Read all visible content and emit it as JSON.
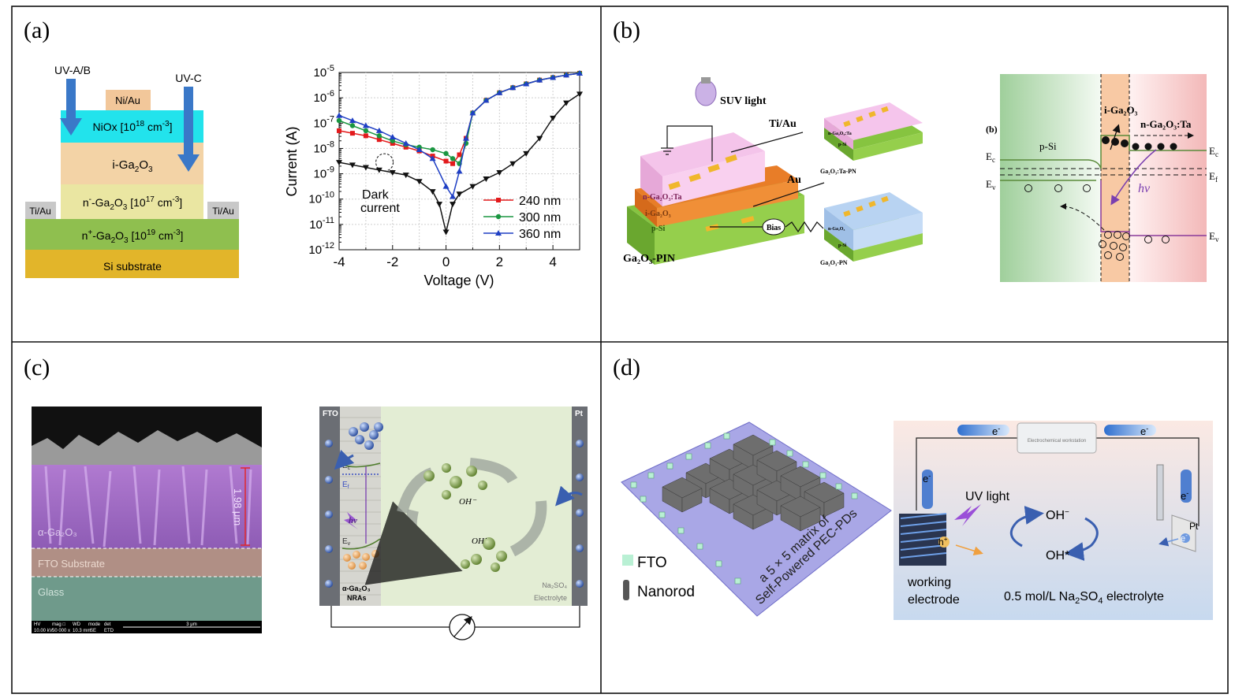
{
  "panels": {
    "a": {
      "label": "(a)",
      "device": {
        "uv_ab": "UV-A/B",
        "uv_c": "UV-C",
        "top_contact": "Ni/Au",
        "niox_layer": "NiOx [10",
        "niox_exp": "18",
        "niox_unit": " cm",
        "niox_unit_exp": "-3",
        "niox_close": "]",
        "i_layer": "i-Ga",
        "i_layer_sub1": "2",
        "i_layer_o": "O",
        "i_layer_sub2": "3",
        "n_minus_layer": "n",
        "n_minus_sup": "-",
        "n_minus_rest": "-Ga",
        "n_minus_sub1": "2",
        "n_minus_o": "O",
        "n_minus_sub2": "3",
        "n_minus_conc": " [10",
        "n_minus_exp": "17",
        "n_minus_unit": " cm",
        "n_minus_unit_exp": "-3",
        "n_minus_close": "]",
        "left_contact": "Ti/Au",
        "right_contact": "Ti/Au",
        "n_plus_layer": "n",
        "n_plus_sup": "+",
        "n_plus_rest": "-Ga",
        "n_plus_sub1": "2",
        "n_plus_o": "O",
        "n_plus_sub2": "3",
        "n_plus_conc": " [10",
        "n_plus_exp": "19",
        "n_plus_unit": " cm",
        "n_plus_unit_exp": "-3",
        "n_plus_close": "]",
        "substrate": "Si substrate"
      }
    },
    "b": {
      "label": "(b)",
      "light": "SUV light",
      "ti_au": "Ti/Au",
      "au": "Au",
      "bias": "Bias",
      "layer_n": "n-Ga₂O₃:Ta",
      "layer_i": "i-Ga₂O₃",
      "layer_p": "p-Si",
      "device_main": "Ga₂O₃-PIN",
      "device_tapn": "Ga₂O₃:Ta-PN",
      "device_pn": "Ga₂O₃-PN",
      "small_n_ta": "n-Ga₂O₃:Ta",
      "small_psi_1": "p-Si",
      "small_n": "n-Ga₂O₃",
      "small_psi_2": "p-Si",
      "band": {
        "tag": "(b)",
        "i_region": "i-Ga₂O₃",
        "n_region": "n-Ga₂O₃:Ta",
        "p_region": "p-Si",
        "ec_left": "E",
        "ec_left_sub": "c",
        "ev_left": "E",
        "ev_left_sub": "v",
        "ec_right": "E",
        "ec_right_sub": "c",
        "ef_right": "E",
        "ef_right_sub": "f",
        "ev_right": "E",
        "ev_right_sub": "v",
        "hv": "hv"
      }
    },
    "c": {
      "label": "(c)",
      "sem": {
        "layer_top": "α-Ga₂O₃",
        "layer_mid": "FTO Substrate",
        "layer_bottom": "Glass",
        "thickness": "1.98 μm",
        "info_hv": "HV",
        "info_mag": "mag □",
        "info_wd": "WD",
        "info_mode": "mode",
        "info_det": "det",
        "info_hv_val": "10.00 kV",
        "info_mag_val": "50 000 x",
        "info_wd_val": "10.3 mm",
        "info_mode_val": "SE",
        "info_det_val": "ETD",
        "scale": "3 μm"
      },
      "pec": {
        "fto": "FTO",
        "pt": "Pt",
        "ec": "E",
        "ec_sub": "c",
        "ef": "E",
        "ef_sub": "f",
        "ev": "E",
        "ev_sub": "v",
        "hv": "hv",
        "oh_minus": "OH⁻",
        "oh_radical": "OH˙",
        "nras_1": "α-Ga₂O₃",
        "nras_2": "NRAs",
        "electrolyte_1": "Na₂SO₄",
        "electrolyte_2": "Electrolyte"
      }
    },
    "d": {
      "label": "(d)",
      "matrix_1": "a 5 × 5 matrix of",
      "matrix_2": "Self-Powered PEC-PDs",
      "legend_fto": "FTO",
      "legend_nanorod": "Nanorod",
      "cell": {
        "workstation": "Electrochemical workstation",
        "e1": "e",
        "e2": "e",
        "e3": "e",
        "e4": "e",
        "e5": "e",
        "minus": "-",
        "uv": "UV light",
        "oh_minus": "OH",
        "oh_minus_sup": "−",
        "oh_star": "OH*",
        "hole": "h",
        "hole_sup": "+",
        "pt": "Pt",
        "we_1": "working",
        "we_2": "electrode",
        "electrolyte_pre": "0.5 mol/L Na",
        "electrolyte_sub1": "2",
        "electrolyte_mid": "SO",
        "electrolyte_sub2": "4",
        "electrolyte_post": "  electrolyte"
      }
    }
  },
  "chart_data": {
    "type": "line",
    "title": "",
    "xlabel": "Voltage (V)",
    "ylabel": "Current (A)",
    "xlim": [
      -4,
      5
    ],
    "ylim": [
      1e-12,
      1e-05
    ],
    "yscale": "log",
    "x_ticks": [
      -4,
      -2,
      0,
      2,
      4
    ],
    "x_tick_labels": [
      "-4",
      "-2",
      "0",
      "2",
      "4"
    ],
    "y_tick_exponents": [
      -12,
      -11,
      -10,
      -9,
      -8,
      -7,
      -6,
      -5
    ],
    "y_tick_base": "10",
    "grid": true,
    "legend_position": "bottom-right",
    "annotation": {
      "line1": "Dark",
      "line2": "current",
      "at_x": -2.3,
      "at_log_y": -8.55
    },
    "series": [
      {
        "name": "240 nm",
        "color": "#e31a1c",
        "marker": "square",
        "x": [
          -4,
          -3.5,
          -3,
          -2.5,
          -2,
          -1.5,
          -1,
          -0.5,
          0,
          0.25,
          0.5,
          0.75,
          1,
          1.5,
          2,
          2.5,
          3,
          3.5,
          4,
          4.5,
          5
        ],
        "log_y": [
          -7.3,
          -7.4,
          -7.5,
          -7.65,
          -7.8,
          -7.95,
          -8.1,
          -8.3,
          -8.5,
          -8.6,
          -8.25,
          -7.6,
          -6.6,
          -6.1,
          -5.8,
          -5.6,
          -5.45,
          -5.3,
          -5.2,
          -5.1,
          -5.03
        ]
      },
      {
        "name": "300 nm",
        "color": "#1a9641",
        "marker": "circle",
        "x": [
          -4,
          -3.5,
          -3,
          -2.5,
          -2,
          -1.5,
          -1,
          -0.5,
          0,
          0.25,
          0.5,
          0.75,
          1,
          1.5,
          2,
          2.5,
          3,
          3.5,
          4,
          4.5,
          5
        ],
        "log_y": [
          -6.9,
          -7.1,
          -7.3,
          -7.5,
          -7.7,
          -7.85,
          -7.95,
          -8.05,
          -8.2,
          -8.4,
          -8.6,
          -7.8,
          -6.6,
          -6.1,
          -5.8,
          -5.6,
          -5.45,
          -5.3,
          -5.2,
          -5.1,
          -5.03
        ]
      },
      {
        "name": "360 nm",
        "color": "#1f3fc4",
        "marker": "triangle-up",
        "x": [
          -4,
          -3.5,
          -3,
          -2.5,
          -2,
          -1.5,
          -1,
          -0.5,
          0,
          0.25,
          0.5,
          0.75,
          1,
          1.5,
          2,
          2.5,
          3,
          3.5,
          4,
          4.5,
          5
        ],
        "log_y": [
          -6.7,
          -6.9,
          -7.1,
          -7.3,
          -7.55,
          -7.8,
          -8.05,
          -8.4,
          -9.5,
          -9.9,
          -8.9,
          -7.6,
          -6.6,
          -6.1,
          -5.8,
          -5.6,
          -5.45,
          -5.3,
          -5.2,
          -5.1,
          -5.03
        ]
      },
      {
        "name": "dark",
        "color": "#111111",
        "marker": "triangle-down",
        "x": [
          -4,
          -3.5,
          -3,
          -2.5,
          -2,
          -1.5,
          -1,
          -0.5,
          -0.25,
          0,
          0.25,
          0.5,
          1,
          1.5,
          2,
          2.5,
          3,
          3.5,
          4,
          4.5,
          5
        ],
        "log_y": [
          -8.55,
          -8.65,
          -8.75,
          -8.85,
          -8.95,
          -9.05,
          -9.3,
          -9.7,
          -10.2,
          -11.3,
          -10.2,
          -9.8,
          -9.5,
          -9.2,
          -8.95,
          -8.6,
          -8.2,
          -7.6,
          -6.8,
          -6.2,
          -5.85
        ]
      }
    ]
  }
}
